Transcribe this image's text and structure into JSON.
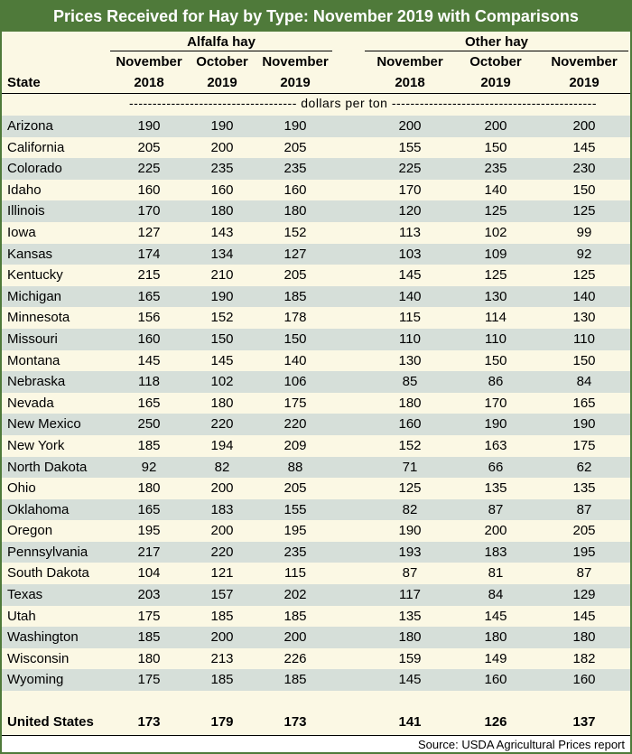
{
  "title": "Prices Received for Hay by Type: November 2019 with Comparisons",
  "groups": {
    "alfalfa": "Alfalfa hay",
    "other": "Other hay"
  },
  "state_header": "State",
  "column_headers": [
    {
      "month": "November",
      "year": "2018"
    },
    {
      "month": "October",
      "year": "2019"
    },
    {
      "month": "November",
      "year": "2019"
    },
    {
      "month": "November",
      "year": "2018"
    },
    {
      "month": "October",
      "year": "2019"
    },
    {
      "month": "November",
      "year": "2019"
    }
  ],
  "units": "------------------------------------ dollars per ton --------------------------------------------",
  "rows": [
    {
      "state": "Arizona",
      "values": [
        "190",
        "190",
        "190",
        "200",
        "200",
        "200"
      ]
    },
    {
      "state": "California",
      "values": [
        "205",
        "200",
        "205",
        "155",
        "150",
        "145"
      ]
    },
    {
      "state": "Colorado",
      "values": [
        "225",
        "235",
        "235",
        "225",
        "235",
        "230"
      ]
    },
    {
      "state": "Idaho",
      "values": [
        "160",
        "160",
        "160",
        "170",
        "140",
        "150"
      ]
    },
    {
      "state": "Illinois",
      "values": [
        "170",
        "180",
        "180",
        "120",
        "125",
        "125"
      ]
    },
    {
      "state": "Iowa",
      "values": [
        "127",
        "143",
        "152",
        "113",
        "102",
        "99"
      ]
    },
    {
      "state": "Kansas",
      "values": [
        "174",
        "134",
        "127",
        "103",
        "109",
        "92"
      ]
    },
    {
      "state": "Kentucky",
      "values": [
        "215",
        "210",
        "205",
        "145",
        "125",
        "125"
      ]
    },
    {
      "state": "Michigan",
      "values": [
        "165",
        "190",
        "185",
        "140",
        "130",
        "140"
      ]
    },
    {
      "state": "Minnesota",
      "values": [
        "156",
        "152",
        "178",
        "115",
        "114",
        "130"
      ]
    },
    {
      "state": "Missouri",
      "values": [
        "160",
        "150",
        "150",
        "110",
        "110",
        "110"
      ]
    },
    {
      "state": "Montana",
      "values": [
        "145",
        "145",
        "140",
        "130",
        "150",
        "150"
      ]
    },
    {
      "state": "Nebraska",
      "values": [
        "118",
        "102",
        "106",
        "85",
        "86",
        "84"
      ]
    },
    {
      "state": "Nevada",
      "values": [
        "165",
        "180",
        "175",
        "180",
        "170",
        "165"
      ]
    },
    {
      "state": "New Mexico",
      "values": [
        "250",
        "220",
        "220",
        "160",
        "190",
        "190"
      ]
    },
    {
      "state": "New York",
      "values": [
        "185",
        "194",
        "209",
        "152",
        "163",
        "175"
      ]
    },
    {
      "state": "North Dakota",
      "values": [
        "92",
        "82",
        "88",
        "71",
        "66",
        "62"
      ]
    },
    {
      "state": "Ohio",
      "values": [
        "180",
        "200",
        "205",
        "125",
        "135",
        "135"
      ]
    },
    {
      "state": "Oklahoma",
      "values": [
        "165",
        "183",
        "155",
        "82",
        "87",
        "87"
      ]
    },
    {
      "state": "Oregon",
      "values": [
        "195",
        "200",
        "195",
        "190",
        "200",
        "205"
      ]
    },
    {
      "state": "Pennsylvania",
      "values": [
        "217",
        "220",
        "235",
        "193",
        "183",
        "195"
      ]
    },
    {
      "state": "South Dakota",
      "values": [
        "104",
        "121",
        "115",
        "87",
        "81",
        "87"
      ]
    },
    {
      "state": "Texas",
      "values": [
        "203",
        "157",
        "202",
        "117",
        "84",
        "129"
      ]
    },
    {
      "state": "Utah",
      "values": [
        "175",
        "185",
        "185",
        "135",
        "145",
        "145"
      ]
    },
    {
      "state": "Washington",
      "values": [
        "185",
        "200",
        "200",
        "180",
        "180",
        "180"
      ]
    },
    {
      "state": "Wisconsin",
      "values": [
        "180",
        "213",
        "226",
        "159",
        "149",
        "182"
      ]
    },
    {
      "state": "Wyoming",
      "values": [
        "175",
        "185",
        "185",
        "145",
        "160",
        "160"
      ]
    }
  ],
  "total": {
    "state": "United States",
    "values": [
      "173",
      "179",
      "173",
      "141",
      "126",
      "137"
    ]
  },
  "source": "Source: USDA Agricultural Prices report",
  "colors": {
    "title_bg": "#4f7a3a",
    "stripe": "#d6dfd9",
    "body_bg": "#fbf8e4"
  }
}
